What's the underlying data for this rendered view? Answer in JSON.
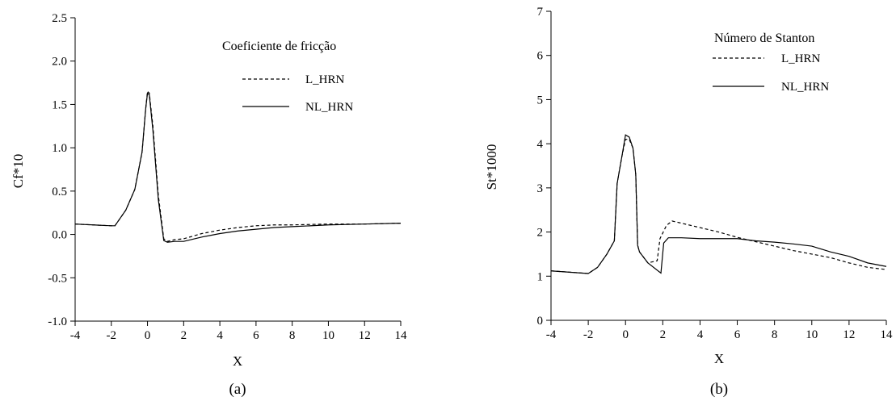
{
  "chart_data": [
    {
      "type": "line",
      "panel_label": "(a)",
      "title": "Coeficiente de fricção",
      "xlabel": "X",
      "ylabel": "Cf*10",
      "xlim": [
        -4,
        14
      ],
      "ylim": [
        -1.0,
        2.5
      ],
      "xticks": [
        "-4",
        "-2",
        "0",
        "2",
        "4",
        "6",
        "8",
        "10",
        "12",
        "14"
      ],
      "yticks": [
        "-1.0",
        "-0.5",
        "0.0",
        "0.5",
        "1.0",
        "1.5",
        "2.0",
        "2.5"
      ],
      "grid": false,
      "legend_position": "top-right",
      "series": [
        {
          "name": "L_HRN",
          "style": "dashed",
          "x": [
            -4,
            -3,
            -2,
            -1.8,
            -1.2,
            -0.7,
            -0.3,
            -0.1,
            0,
            0.1,
            0.3,
            0.6,
            0.9,
            1.1,
            1.5,
            2,
            3,
            4,
            5,
            6,
            7,
            8,
            10,
            12,
            14
          ],
          "y": [
            0.12,
            0.11,
            0.1,
            0.1,
            0.28,
            0.52,
            0.95,
            1.45,
            1.65,
            1.63,
            1.25,
            0.45,
            -0.05,
            -0.08,
            -0.06,
            -0.05,
            0.01,
            0.05,
            0.08,
            0.1,
            0.11,
            0.11,
            0.12,
            0.12,
            0.13
          ]
        },
        {
          "name": "NL_HRN",
          "style": "solid",
          "x": [
            -4,
            -3,
            -2,
            -1.8,
            -1.2,
            -0.7,
            -0.3,
            -0.1,
            0,
            0.1,
            0.3,
            0.6,
            0.9,
            1.1,
            1.5,
            2,
            3,
            4,
            5,
            6,
            7,
            8,
            10,
            12,
            14
          ],
          "y": [
            0.12,
            0.11,
            0.1,
            0.1,
            0.28,
            0.52,
            0.95,
            1.45,
            1.63,
            1.61,
            1.2,
            0.4,
            -0.07,
            -0.09,
            -0.08,
            -0.08,
            -0.03,
            0.01,
            0.04,
            0.06,
            0.08,
            0.09,
            0.11,
            0.12,
            0.13
          ]
        }
      ]
    },
    {
      "type": "line",
      "panel_label": "(b)",
      "title": "Número de Stanton",
      "xlabel": "X",
      "ylabel": "St*1000",
      "xlim": [
        -4,
        14
      ],
      "ylim": [
        0,
        7
      ],
      "xticks": [
        "-4",
        "-2",
        "0",
        "2",
        "4",
        "6",
        "8",
        "10",
        "12",
        "14"
      ],
      "yticks": [
        "0",
        "1",
        "2",
        "3",
        "4",
        "5",
        "6",
        "7"
      ],
      "grid": false,
      "legend_position": "top-right",
      "series": [
        {
          "name": "L_HRN",
          "style": "dashed",
          "x": [
            -4,
            -3,
            -2,
            -1.5,
            -1,
            -0.6,
            -0.45,
            -0.2,
            0,
            0.2,
            0.4,
            0.55,
            0.65,
            0.75,
            1.2,
            1.7,
            1.85,
            2.2,
            2.5,
            3,
            4,
            5,
            6,
            7,
            8,
            9,
            10,
            11,
            12,
            13,
            14
          ],
          "y": [
            1.12,
            1.09,
            1.06,
            1.2,
            1.5,
            1.8,
            3.1,
            3.7,
            4.1,
            4.1,
            3.9,
            3.3,
            1.7,
            1.55,
            1.3,
            1.35,
            1.85,
            2.15,
            2.25,
            2.2,
            2.1,
            2.0,
            1.88,
            1.78,
            1.68,
            1.58,
            1.5,
            1.42,
            1.3,
            1.2,
            1.15
          ]
        },
        {
          "name": "NL_HRN",
          "style": "solid",
          "x": [
            -4,
            -3,
            -2,
            -1.5,
            -1,
            -0.6,
            -0.45,
            -0.2,
            0,
            0.2,
            0.4,
            0.55,
            0.65,
            0.75,
            1.2,
            1.9,
            2.05,
            2.3,
            3,
            4,
            5,
            6,
            7,
            8,
            9,
            10,
            11,
            12,
            13,
            14
          ],
          "y": [
            1.12,
            1.09,
            1.06,
            1.2,
            1.5,
            1.8,
            3.1,
            3.7,
            4.2,
            4.15,
            3.9,
            3.3,
            1.7,
            1.55,
            1.3,
            1.07,
            1.75,
            1.87,
            1.87,
            1.85,
            1.85,
            1.85,
            1.8,
            1.77,
            1.73,
            1.68,
            1.55,
            1.45,
            1.3,
            1.22
          ]
        }
      ]
    }
  ]
}
